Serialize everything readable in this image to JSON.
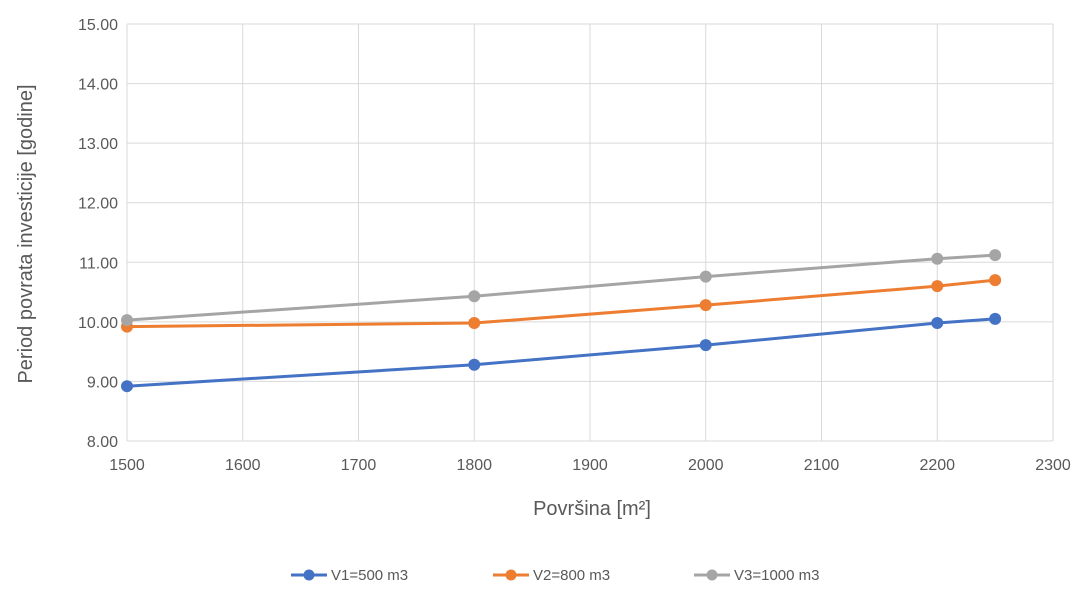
{
  "chart_data": {
    "type": "line",
    "title": "",
    "xlabel": "Površina [m²]",
    "ylabel": "Period povrata investicije [godine]",
    "xlim": [
      1500,
      2300
    ],
    "ylim": [
      8,
      15
    ],
    "x_ticks": [
      1500,
      1600,
      1700,
      1800,
      1900,
      2000,
      2100,
      2200,
      2300
    ],
    "y_ticks": [
      8,
      9,
      10,
      11,
      12,
      13,
      14,
      15
    ],
    "x_tick_labels": [
      "1500",
      "1600",
      "1700",
      "1800",
      "1900",
      "2000",
      "2100",
      "2200",
      "2300"
    ],
    "y_tick_labels": [
      "8.00",
      "9.00",
      "10.00",
      "11.00",
      "12.00",
      "13.00",
      "14.00",
      "15.00"
    ],
    "grid": true,
    "legend_position": "bottom",
    "series": [
      {
        "name": "V1=500 m3",
        "color": "#4472C4",
        "points": [
          [
            1500,
            8.92
          ],
          [
            1800,
            9.28
          ],
          [
            2000,
            9.61
          ],
          [
            2200,
            9.98
          ],
          [
            2250,
            10.05
          ]
        ]
      },
      {
        "name": "V2=800 m3",
        "color": "#ED7D31",
        "points": [
          [
            1500,
            9.92
          ],
          [
            1800,
            9.98
          ],
          [
            2000,
            10.28
          ],
          [
            2200,
            10.6
          ],
          [
            2250,
            10.7
          ]
        ]
      },
      {
        "name": "V3=1000 m3",
        "color": "#A5A5A5",
        "points": [
          [
            1500,
            10.03
          ],
          [
            1800,
            10.43
          ],
          [
            2000,
            10.76
          ],
          [
            2200,
            11.06
          ],
          [
            2250,
            11.12
          ]
        ]
      }
    ]
  }
}
